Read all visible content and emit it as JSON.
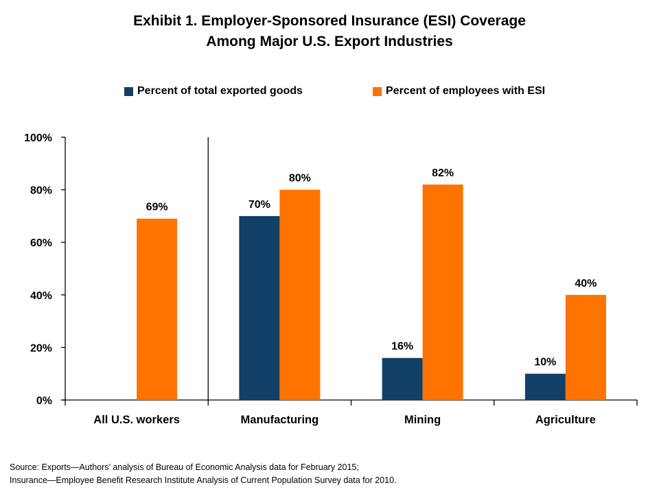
{
  "chart_data": {
    "type": "bar",
    "title": "Exhibit 1. Employer-Sponsored Insurance (ESI) Coverage",
    "subtitle": "Among Major U.S. Export Industries",
    "xlabel": "",
    "ylabel": "",
    "categories": [
      "All U.S. workers",
      "Manufacturing",
      "Mining",
      "Agriculture"
    ],
    "series": [
      {
        "name": "Percent of total exported goods",
        "color": "#123f66",
        "values": [
          null,
          70,
          16,
          10
        ],
        "labels": [
          "",
          "70%",
          "16%",
          "10%"
        ]
      },
      {
        "name": "Percent of employees with ESI",
        "color": "#ff7300",
        "values": [
          69,
          80,
          82,
          40
        ],
        "labels": [
          "69%",
          "80%",
          "82%",
          "40%"
        ]
      }
    ],
    "ylim": [
      0,
      100
    ],
    "yticks": [
      0,
      20,
      40,
      60,
      80,
      100
    ],
    "ytick_labels": [
      "0%",
      "20%",
      "40%",
      "60%",
      "80%",
      "100%"
    ],
    "grid": false,
    "legend_position": "top-center",
    "separator_after_category": "All U.S. workers"
  },
  "source": {
    "line1": "Source:  Exports—Authors’  analysis of Bureau of Economic  Analysis data for February  2015;",
    "line2": "Insurance—Employee  Benefit Research Institute Analysis of Current  Population  Survey data for 2010."
  }
}
